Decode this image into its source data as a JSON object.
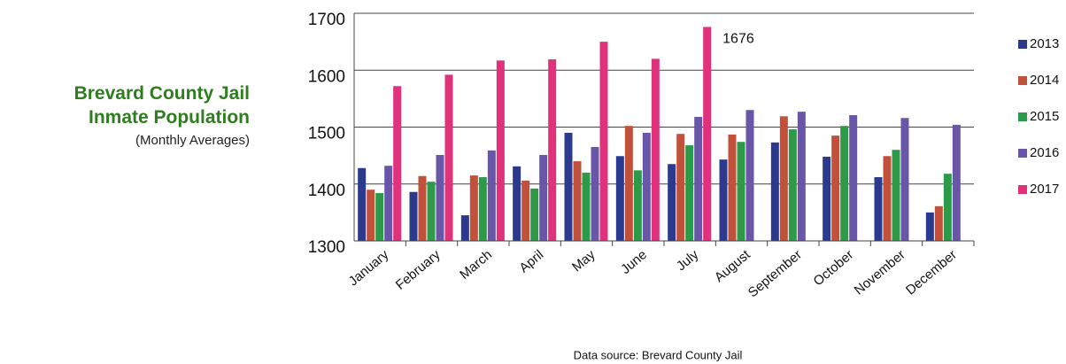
{
  "chart_data": {
    "type": "bar",
    "title": "Brevard County Jail Inmate Population",
    "subtitle": "(Monthly Averages)",
    "source": "Data source:  Brevard County Jail",
    "categories": [
      "January",
      "February",
      "March",
      "April",
      "May",
      "June",
      "July",
      "August",
      "September",
      "October",
      "November",
      "December"
    ],
    "series": [
      {
        "name": "2013",
        "color": "#2b3a8e",
        "values": [
          1428,
          1386,
          1345,
          1431,
          1490,
          1449,
          1435,
          1443,
          1473,
          1448,
          1412,
          1350
        ]
      },
      {
        "name": "2014",
        "color": "#c2513b",
        "values": [
          1390,
          1414,
          1415,
          1406,
          1440,
          1502,
          1488,
          1487,
          1519,
          1485,
          1449,
          1361
        ]
      },
      {
        "name": "2015",
        "color": "#2c9a48",
        "values": [
          1384,
          1404,
          1412,
          1392,
          1420,
          1424,
          1468,
          1474,
          1496,
          1502,
          1460,
          1418
        ]
      },
      {
        "name": "2016",
        "color": "#6a56a9",
        "values": [
          1432,
          1451,
          1459,
          1451,
          1465,
          1490,
          1518,
          1530,
          1527,
          1521,
          1516,
          1504
        ]
      },
      {
        "name": "2017",
        "color": "#e0317b",
        "values": [
          1572,
          1592,
          1617,
          1619,
          1650,
          1620,
          1676,
          null,
          null,
          null,
          null,
          null
        ],
        "value_labels": [
          null,
          null,
          null,
          null,
          null,
          null,
          "1676",
          null,
          null,
          null,
          null,
          null
        ]
      }
    ],
    "ylim": [
      1300,
      1700
    ],
    "yticks": [
      1300,
      1400,
      1500,
      1600,
      1700
    ],
    "grid": true,
    "legend": "right"
  }
}
